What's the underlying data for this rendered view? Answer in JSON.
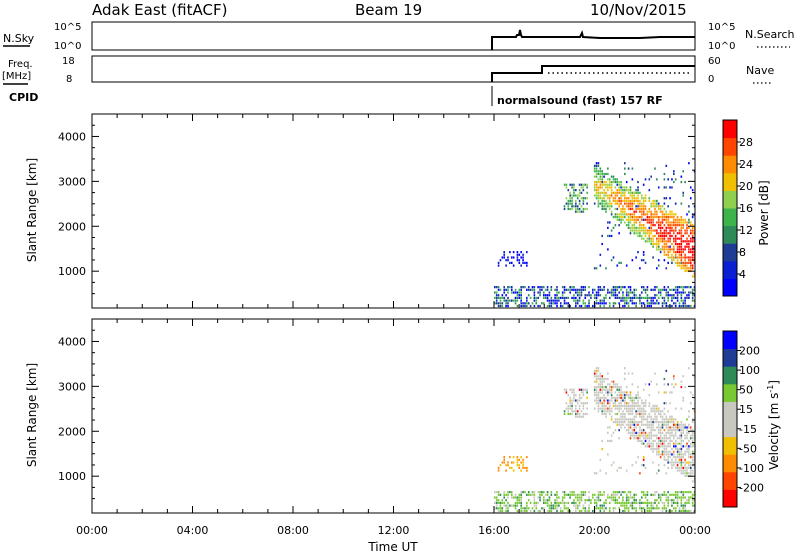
{
  "header": {
    "station": "Adak East (fitACF)",
    "beam": "Beam 19",
    "date": "10/Nov/2015"
  },
  "top_panels": {
    "nsky_label": "N.Sky",
    "nsky_ticks": [
      "10^5",
      "10^0"
    ],
    "nsearch_label": "N.Search",
    "nsearch_ticks": [
      "10^5",
      "10^0"
    ],
    "freq_label_line1": "Freq.",
    "freq_label_line2": "[MHz]",
    "freq_ticks": [
      "18",
      "8"
    ],
    "nave_label": "Nave",
    "nave_ticks": [
      "60",
      "0"
    ],
    "cpid_label": "CPID",
    "cpid_text": "normalsound (fast) 157 RF"
  },
  "chart_data": [
    {
      "type": "heatmap",
      "name": "power",
      "ylabel": "Slant Range [km]",
      "yticks": [
        "4000",
        "3000",
        "2000",
        "1000"
      ],
      "ytick_values": [
        4000,
        3000,
        2000,
        1000
      ],
      "ylim": [
        180,
        4500
      ],
      "colorbar_label": "Power [dB]",
      "colorbar_ticks": [
        "28",
        "24",
        "20",
        "16",
        "12",
        "8",
        "4"
      ],
      "colorbar_colors": [
        "#0000ff",
        "#0a1fd2",
        "#1e3c96",
        "#2e8b57",
        "#3cb44b",
        "#8fd14f",
        "#f0c000",
        "#ff8c00",
        "#ff4500",
        "#ff0000"
      ],
      "data_start_time": "16:00"
    },
    {
      "type": "heatmap",
      "name": "velocity",
      "ylabel": "Slant Range [km]",
      "yticks": [
        "4000",
        "3000",
        "2000",
        "1000"
      ],
      "ytick_values": [
        4000,
        3000,
        2000,
        1000
      ],
      "ylim": [
        180,
        4500
      ],
      "colorbar_label": "Velocity [m s",
      "colorbar_label_sup": "-1",
      "colorbar_label_end": "]",
      "colorbar_ticks": [
        "200",
        "100",
        "50",
        "15",
        "-15",
        "-50",
        "-100",
        "-200"
      ],
      "colorbar_colors": [
        "#ff0000",
        "#ff4500",
        "#ff8c00",
        "#f0c000",
        "#c8c8c0",
        "#c8c8c0",
        "#78c832",
        "#2e8b57",
        "#1e3c96",
        "#0000ff"
      ],
      "xlabel": "Time UT",
      "xticks": [
        "00:00",
        "04:00",
        "08:00",
        "12:00",
        "16:00",
        "20:00",
        "00:00"
      ],
      "data_start_time": "16:00"
    }
  ]
}
